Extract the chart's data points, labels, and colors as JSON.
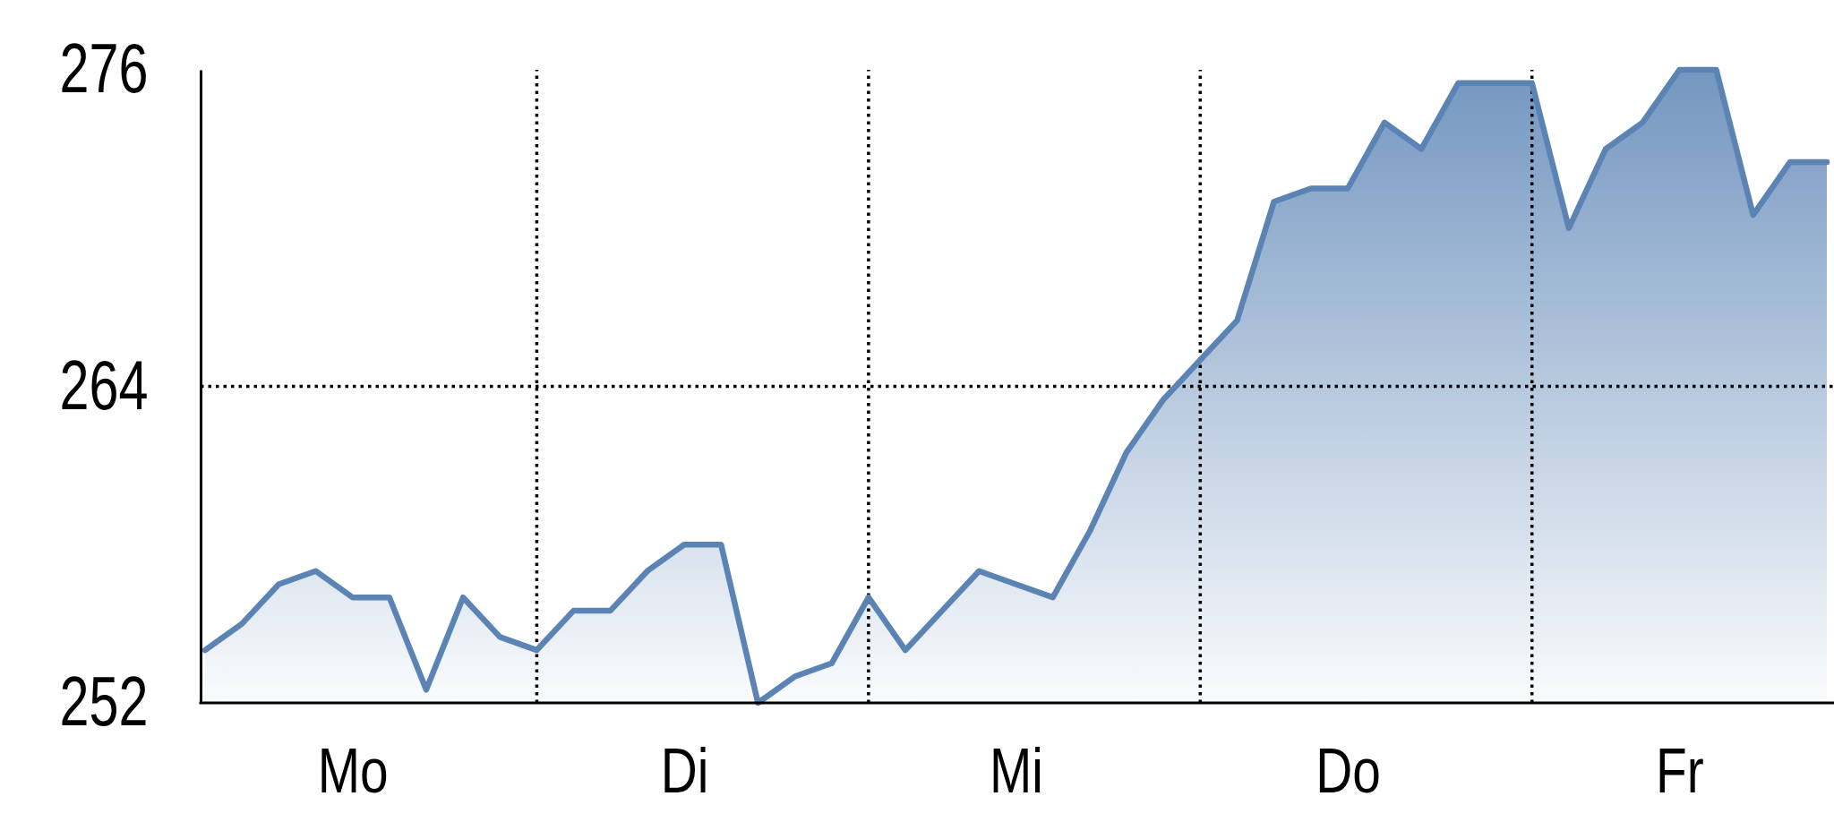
{
  "chart_data": {
    "type": "area",
    "categories": [
      null,
      null,
      null,
      null,
      "Mo",
      null,
      null,
      null,
      null,
      null,
      null,
      null,
      null,
      "Di",
      null,
      null,
      null,
      null,
      null,
      null,
      null,
      null,
      "Mi",
      null,
      null,
      null,
      null,
      null,
      null,
      null,
      null,
      "Do",
      null,
      null,
      null,
      null,
      null,
      null,
      null,
      null,
      "Fr",
      null,
      null,
      null,
      null
    ],
    "ylim": [
      252,
      276
    ],
    "yticks": [
      252,
      264,
      276
    ],
    "grid": true,
    "series": [
      {
        "color": "#5b84b5",
        "values": [
          254,
          255,
          256.5,
          257,
          256,
          256,
          252.5,
          256,
          254.5,
          254,
          255.5,
          255.5,
          257,
          258,
          258,
          252,
          253,
          253.5,
          256,
          254,
          255.5,
          257,
          256.5,
          256,
          258.5,
          261.5,
          263.5,
          265,
          266.5,
          271,
          271.5,
          271.5,
          274,
          273,
          275.5,
          275.5,
          275.5,
          270,
          273,
          274,
          276,
          276,
          270.5,
          272.5,
          272.5
        ]
      }
    ]
  }
}
